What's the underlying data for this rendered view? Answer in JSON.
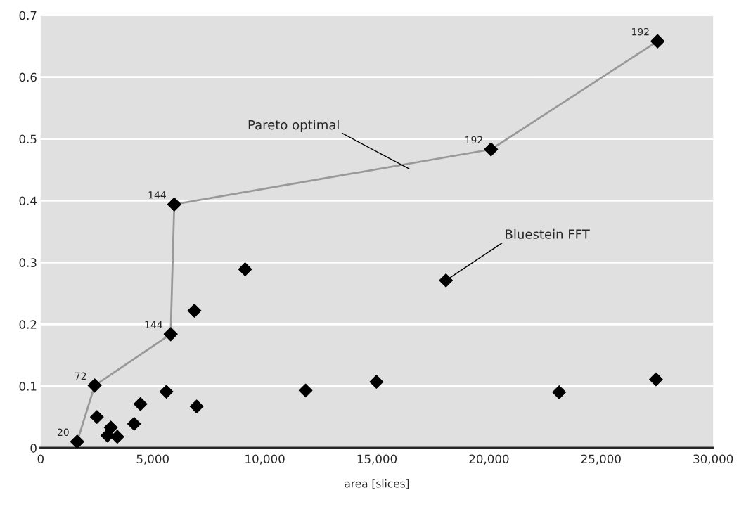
{
  "chart_data": {
    "type": "scatter",
    "xlabel": "area [slices]",
    "xlim": [
      0,
      30000
    ],
    "xticks": [
      {
        "value": 0,
        "label": "0"
      },
      {
        "value": 5000,
        "label": "5,000"
      },
      {
        "value": 10000,
        "label": "10,000"
      },
      {
        "value": 15000,
        "label": "15,000"
      },
      {
        "value": 20000,
        "label": "20,000"
      },
      {
        "value": 25000,
        "label": "25,000"
      },
      {
        "value": 30000,
        "label": "30,000"
      }
    ],
    "ylim": [
      0,
      0.7
    ],
    "yticks": [
      0,
      0.1,
      0.2,
      0.3,
      0.4,
      0.5,
      0.6,
      0.7
    ],
    "grid": "y",
    "marker": "diamond",
    "series": [
      {
        "type": "line",
        "color": "#999999",
        "colors": [
          "#000000",
          "#000000",
          "#000000",
          "#000000",
          "#000000",
          "#000000"
        ],
        "x": [
          1630,
          2410,
          5800,
          5960,
          20090,
          27520
        ],
        "values": [
          0.01,
          0.101,
          0.184,
          0.394,
          0.483,
          0.658
        ]
      },
      {
        "color": "#000000",
        "x": [
          2510,
          3130,
          2980,
          3420,
          4170,
          4450,
          5610,
          6960,
          6860,
          9120,
          11820,
          14980,
          18080,
          23130,
          27450
        ],
        "values": [
          0.05,
          0.033,
          0.02,
          0.018,
          0.039,
          0.071,
          0.091,
          0.067,
          0.222,
          0.289,
          0.093,
          0.107,
          0.271,
          0.09,
          0.111
        ]
      }
    ],
    "annotations": [
      {
        "text": "20",
        "x": 1630,
        "y": 0.01
      },
      {
        "text": "72",
        "x": 2410,
        "y": 0.101
      },
      {
        "text": "144",
        "x": 5800,
        "y": 0.184
      },
      {
        "text": "144",
        "x": 5960,
        "y": 0.394
      },
      {
        "text": "192",
        "x": 20090,
        "y": 0.483
      },
      {
        "text": "192",
        "x": 27520,
        "y": 0.658
      },
      "Pareto optimal",
      {
        "text": "Bluestein FFT",
        "x": 18080,
        "y": 0.271
      }
    ]
  }
}
